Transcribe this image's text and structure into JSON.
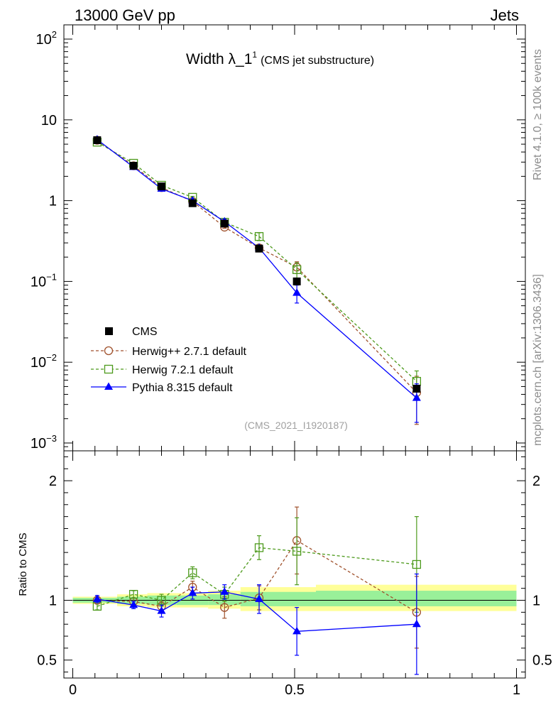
{
  "header": {
    "energy_label": "13000 GeV pp",
    "process_label": "Jets"
  },
  "side_labels": {
    "rivet": "Rivet 4.1.0, ≥ 100k events",
    "mcplots": "mcplots.cern.ch [arXiv:1306.3436]"
  },
  "analysis_id": "(CMS_2021_I1920187)",
  "chart_data": {
    "type": "line",
    "title": "Width λ_1",
    "title_superscript": "1",
    "subtitle": "(CMS jet substructure)",
    "main_panel": {
      "yscale": "log",
      "ylim": [
        0.0008,
        150
      ],
      "y_ticks": [
        {
          "value": 0.001,
          "base": "10",
          "exp": "−3"
        },
        {
          "value": 0.01,
          "base": "10",
          "exp": "−2"
        },
        {
          "value": 0.1,
          "base": "10",
          "exp": "−1"
        },
        {
          "value": 1,
          "base": "1",
          "exp": ""
        },
        {
          "value": 10,
          "base": "10",
          "exp": ""
        },
        {
          "value": 100,
          "base": "10",
          "exp": "2"
        }
      ]
    },
    "ratio_panel": {
      "ylabel": "Ratio to CMS",
      "ylim": [
        0.35,
        2.25
      ],
      "y_ticks": [
        {
          "value": 0.5,
          "label": "0.5"
        },
        {
          "value": 1,
          "label": "1"
        },
        {
          "value": 2,
          "label": "2"
        }
      ],
      "bands": [
        {
          "x0": 0.0,
          "x1": 0.1,
          "inner": [
            0.98,
            1.02
          ],
          "outer": [
            0.97,
            1.03
          ]
        },
        {
          "x0": 0.1,
          "x1": 0.168,
          "inner": [
            0.97,
            1.03
          ],
          "outer": [
            0.95,
            1.05
          ]
        },
        {
          "x0": 0.168,
          "x1": 0.234,
          "inner": [
            0.96,
            1.04
          ],
          "outer": [
            0.94,
            1.06
          ]
        },
        {
          "x0": 0.234,
          "x1": 0.305,
          "inner": [
            0.96,
            1.04
          ],
          "outer": [
            0.94,
            1.06
          ]
        },
        {
          "x0": 0.305,
          "x1": 0.378,
          "inner": [
            0.96,
            1.05
          ],
          "outer": [
            0.93,
            1.08
          ]
        },
        {
          "x0": 0.378,
          "x1": 0.46,
          "inner": [
            0.95,
            1.07
          ],
          "outer": [
            0.91,
            1.11
          ]
        },
        {
          "x0": 0.46,
          "x1": 0.548,
          "inner": [
            0.95,
            1.07
          ],
          "outer": [
            0.91,
            1.11
          ]
        },
        {
          "x0": 0.548,
          "x1": 1.0,
          "inner": [
            0.95,
            1.08
          ],
          "outer": [
            0.91,
            1.13
          ]
        }
      ]
    },
    "xlim": [
      -0.02,
      1.02
    ],
    "x_ticks": [
      {
        "value": 0,
        "label": "0"
      },
      {
        "value": 0.5,
        "label": "0.5"
      },
      {
        "value": 1,
        "label": "1"
      }
    ],
    "x": [
      0.055,
      0.137,
      0.2,
      0.27,
      0.342,
      0.42,
      0.505,
      0.775
    ],
    "series": [
      {
        "name": "CMS",
        "style": "data",
        "color": "#000000",
        "values": [
          5.6,
          2.7,
          1.5,
          0.93,
          0.52,
          0.255,
          0.1,
          0.0047
        ],
        "ratio": [
          1,
          1,
          1,
          1,
          1,
          1,
          1,
          1
        ],
        "ratio_err": [
          0,
          0,
          0,
          0,
          0,
          0,
          0,
          0
        ]
      },
      {
        "name": "Herwig++ 2.7.1 default",
        "style": "circle-dashed",
        "color": "#a0522d",
        "values": [
          5.6,
          2.7,
          1.45,
          0.98,
          0.47,
          0.26,
          0.15,
          0.0042
        ],
        "err": [
          0.08,
          0.04,
          0.03,
          0.02,
          0.015,
          0.01,
          0.025,
          0.0025
        ],
        "ratio": [
          1.0,
          0.99,
          0.95,
          1.11,
          0.94,
          1.02,
          1.5,
          0.9
        ],
        "ratio_err": [
          0.03,
          0.03,
          0.04,
          0.05,
          0.09,
          0.1,
          0.28,
          0.3
        ]
      },
      {
        "name": "Herwig 7.2.1 default",
        "style": "square-dashed",
        "color": "#4d9a1c",
        "values": [
          5.3,
          2.9,
          1.55,
          1.1,
          0.54,
          0.36,
          0.14,
          0.0058
        ],
        "err": [
          0.08,
          0.04,
          0.03,
          0.03,
          0.02,
          0.04,
          0.03,
          0.002
        ],
        "ratio": [
          0.95,
          1.05,
          1.0,
          1.23,
          1.05,
          1.44,
          1.41,
          1.3
        ],
        "ratio_err": [
          0.03,
          0.03,
          0.05,
          0.05,
          0.06,
          0.1,
          0.28,
          0.4
        ]
      },
      {
        "name": "Pythia 8.315 default",
        "style": "triangle-solid",
        "color": "#0000ff",
        "values": [
          5.7,
          2.6,
          1.4,
          1.0,
          0.55,
          0.26,
          0.072,
          0.0036
        ],
        "err": [
          0.08,
          0.05,
          0.05,
          0.04,
          0.04,
          0.02,
          0.018,
          0.0018
        ],
        "ratio": [
          1.01,
          0.96,
          0.91,
          1.06,
          1.07,
          1.01,
          0.74,
          0.8
        ],
        "ratio_err": [
          0.03,
          0.03,
          0.05,
          0.05,
          0.06,
          0.12,
          0.2,
          0.42
        ]
      }
    ]
  }
}
